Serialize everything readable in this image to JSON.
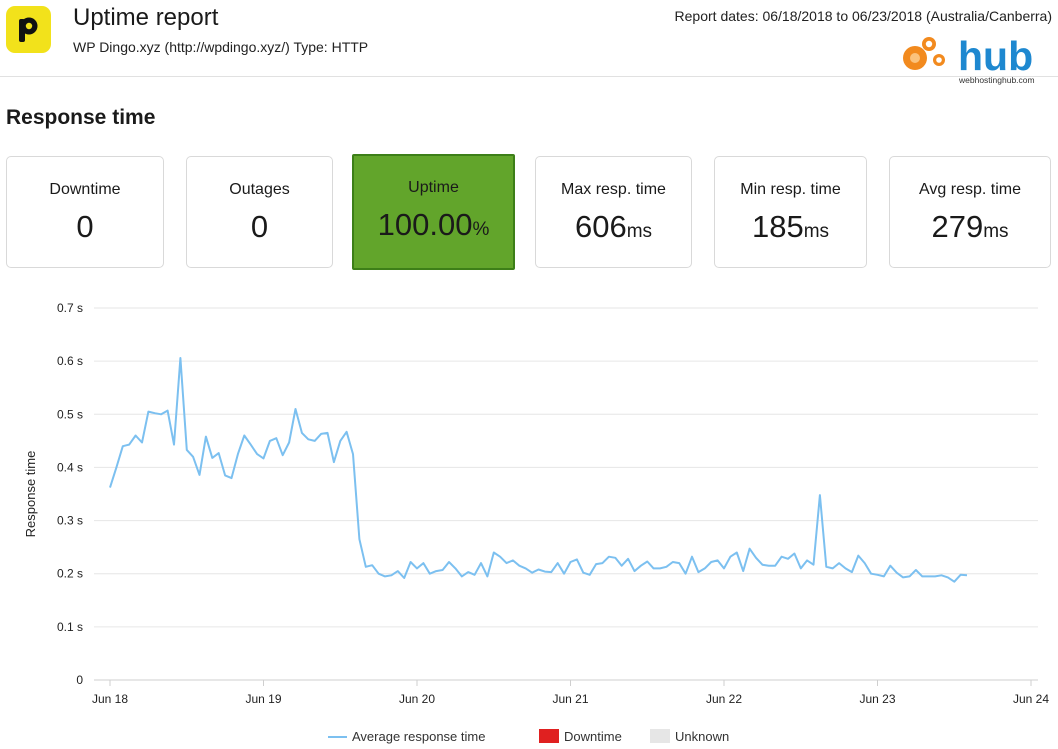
{
  "header": {
    "title": "Uptime report",
    "subtitle": "WP Dingo.xyz (http://wpdingo.xyz/) Type: HTTP",
    "report_dates": "Report dates: 06/18/2018 to 06/23/2018 (Australia/Canberra)",
    "logo_letter": "p",
    "brand_name": "hub",
    "brand_domain": "webhostinghub.com"
  },
  "section_title": "Response time",
  "cards": {
    "downtime": {
      "label": "Downtime",
      "value": "0",
      "unit": ""
    },
    "outages": {
      "label": "Outages",
      "value": "0",
      "unit": ""
    },
    "uptime": {
      "label": "Uptime",
      "value": "100.00",
      "unit": "%"
    },
    "max": {
      "label": "Max resp. time",
      "value": "606",
      "unit": "ms"
    },
    "min": {
      "label": "Min resp. time",
      "value": "185",
      "unit": "ms"
    },
    "avg": {
      "label": "Avg resp. time",
      "value": "279",
      "unit": "ms"
    }
  },
  "colors": {
    "line": "#7cc0f0",
    "uptime_bg": "#62a52b",
    "downtime": "#e02020",
    "unknown": "#e6e6e6",
    "grid": "#e6e6e6",
    "logo_yellow": "#f2e21b",
    "hub_blue": "#1e88d0",
    "hub_orange": "#f28a1e"
  },
  "chart_data": {
    "type": "line",
    "ylabel": "Response time",
    "yticks": [
      0,
      0.1,
      0.2,
      0.3,
      0.4,
      0.5,
      0.6,
      0.7
    ],
    "ytick_labels": [
      "0",
      "0.1 s",
      "0.2 s",
      "0.3 s",
      "0.4 s",
      "0.5 s",
      "0.6 s",
      "0.7 s"
    ],
    "ylim": [
      0,
      0.7
    ],
    "x_tick_labels": [
      "Jun 18",
      "Jun 19",
      "Jun 20",
      "Jun 21",
      "Jun 22",
      "Jun 23",
      "Jun 24"
    ],
    "xlim": [
      "Jun 18",
      "Jun 24"
    ],
    "grid": true,
    "legend_position": "bottom",
    "legend": [
      "Average response time",
      "Downtime",
      "Unknown"
    ],
    "series": [
      {
        "name": "Average response time",
        "x": [
          "06/18 00:00",
          "06/18 01:00",
          "06/18 02:00",
          "06/18 03:00",
          "06/18 04:00",
          "06/18 05:00",
          "06/18 06:00",
          "06/18 07:00",
          "06/18 08:00",
          "06/18 09:00",
          "06/18 10:00",
          "06/18 11:00",
          "06/18 12:00",
          "06/18 13:00",
          "06/18 14:00",
          "06/18 15:00",
          "06/18 16:00",
          "06/18 17:00",
          "06/18 18:00",
          "06/18 19:00",
          "06/18 20:00",
          "06/18 21:00",
          "06/18 22:00",
          "06/18 23:00",
          "06/19 00:00",
          "06/19 01:00",
          "06/19 02:00",
          "06/19 03:00",
          "06/19 04:00",
          "06/19 05:00",
          "06/19 06:00",
          "06/19 07:00",
          "06/19 08:00",
          "06/19 09:00",
          "06/19 10:00",
          "06/19 11:00",
          "06/19 12:00",
          "06/19 13:00",
          "06/19 14:00",
          "06/19 15:00",
          "06/19 16:00",
          "06/19 17:00",
          "06/19 18:00",
          "06/19 19:00",
          "06/19 20:00",
          "06/19 21:00",
          "06/19 22:00",
          "06/19 23:00",
          "06/20 00:00",
          "06/20 01:00",
          "06/20 02:00",
          "06/20 03:00",
          "06/20 04:00",
          "06/20 05:00",
          "06/20 06:00",
          "06/20 07:00",
          "06/20 08:00",
          "06/20 09:00",
          "06/20 10:00",
          "06/20 11:00",
          "06/20 12:00",
          "06/20 13:00",
          "06/20 14:00",
          "06/20 15:00",
          "06/20 16:00",
          "06/20 17:00",
          "06/20 18:00",
          "06/20 19:00",
          "06/20 20:00",
          "06/20 21:00",
          "06/20 22:00",
          "06/20 23:00",
          "06/21 00:00",
          "06/21 01:00",
          "06/21 02:00",
          "06/21 03:00",
          "06/21 04:00",
          "06/21 05:00",
          "06/21 06:00",
          "06/21 07:00",
          "06/21 08:00",
          "06/21 09:00",
          "06/21 10:00",
          "06/21 11:00",
          "06/21 12:00",
          "06/21 13:00",
          "06/21 14:00",
          "06/21 15:00",
          "06/21 16:00",
          "06/21 17:00",
          "06/21 18:00",
          "06/21 19:00",
          "06/21 20:00",
          "06/21 21:00",
          "06/21 22:00",
          "06/21 23:00",
          "06/22 00:00",
          "06/22 01:00",
          "06/22 02:00",
          "06/22 03:00",
          "06/22 04:00",
          "06/22 05:00",
          "06/22 06:00",
          "06/22 07:00",
          "06/22 08:00",
          "06/22 09:00",
          "06/22 10:00",
          "06/22 11:00",
          "06/22 12:00",
          "06/22 13:00",
          "06/22 14:00",
          "06/22 15:00",
          "06/22 16:00",
          "06/22 17:00",
          "06/22 18:00",
          "06/22 19:00",
          "06/22 20:00",
          "06/22 21:00",
          "06/22 22:00",
          "06/22 23:00",
          "06/23 00:00",
          "06/23 01:00",
          "06/23 02:00",
          "06/23 03:00",
          "06/23 04:00",
          "06/23 05:00",
          "06/23 06:00",
          "06/23 07:00",
          "06/23 08:00",
          "06/23 09:00",
          "06/23 10:00",
          "06/23 11:00",
          "06/23 12:00",
          "06/23 13:00",
          "06/23 14:00"
        ],
        "values": [
          0.362,
          0.4,
          0.44,
          0.443,
          0.46,
          0.447,
          0.505,
          0.502,
          0.5,
          0.507,
          0.443,
          0.606,
          0.433,
          0.42,
          0.386,
          0.458,
          0.418,
          0.427,
          0.385,
          0.38,
          0.425,
          0.46,
          0.443,
          0.425,
          0.417,
          0.45,
          0.455,
          0.423,
          0.447,
          0.51,
          0.465,
          0.453,
          0.45,
          0.463,
          0.465,
          0.41,
          0.45,
          0.467,
          0.425,
          0.265,
          0.213,
          0.216,
          0.2,
          0.195,
          0.197,
          0.205,
          0.192,
          0.222,
          0.21,
          0.22,
          0.2,
          0.205,
          0.207,
          0.222,
          0.21,
          0.195,
          0.203,
          0.198,
          0.22,
          0.195,
          0.24,
          0.232,
          0.22,
          0.225,
          0.215,
          0.21,
          0.202,
          0.208,
          0.204,
          0.203,
          0.22,
          0.2,
          0.222,
          0.227,
          0.202,
          0.198,
          0.218,
          0.22,
          0.232,
          0.23,
          0.215,
          0.228,
          0.205,
          0.215,
          0.223,
          0.21,
          0.21,
          0.213,
          0.222,
          0.22,
          0.2,
          0.232,
          0.203,
          0.21,
          0.222,
          0.225,
          0.21,
          0.232,
          0.24,
          0.205,
          0.247,
          0.23,
          0.217,
          0.215,
          0.215,
          0.232,
          0.228,
          0.238,
          0.21,
          0.225,
          0.217,
          0.348,
          0.213,
          0.21,
          0.22,
          0.21,
          0.203,
          0.234,
          0.22,
          0.2,
          0.198,
          0.195,
          0.215,
          0.202,
          0.193,
          0.195,
          0.207,
          0.195,
          0.195,
          0.195,
          0.197,
          0.193,
          0.185,
          0.198,
          0.197
        ]
      }
    ]
  }
}
